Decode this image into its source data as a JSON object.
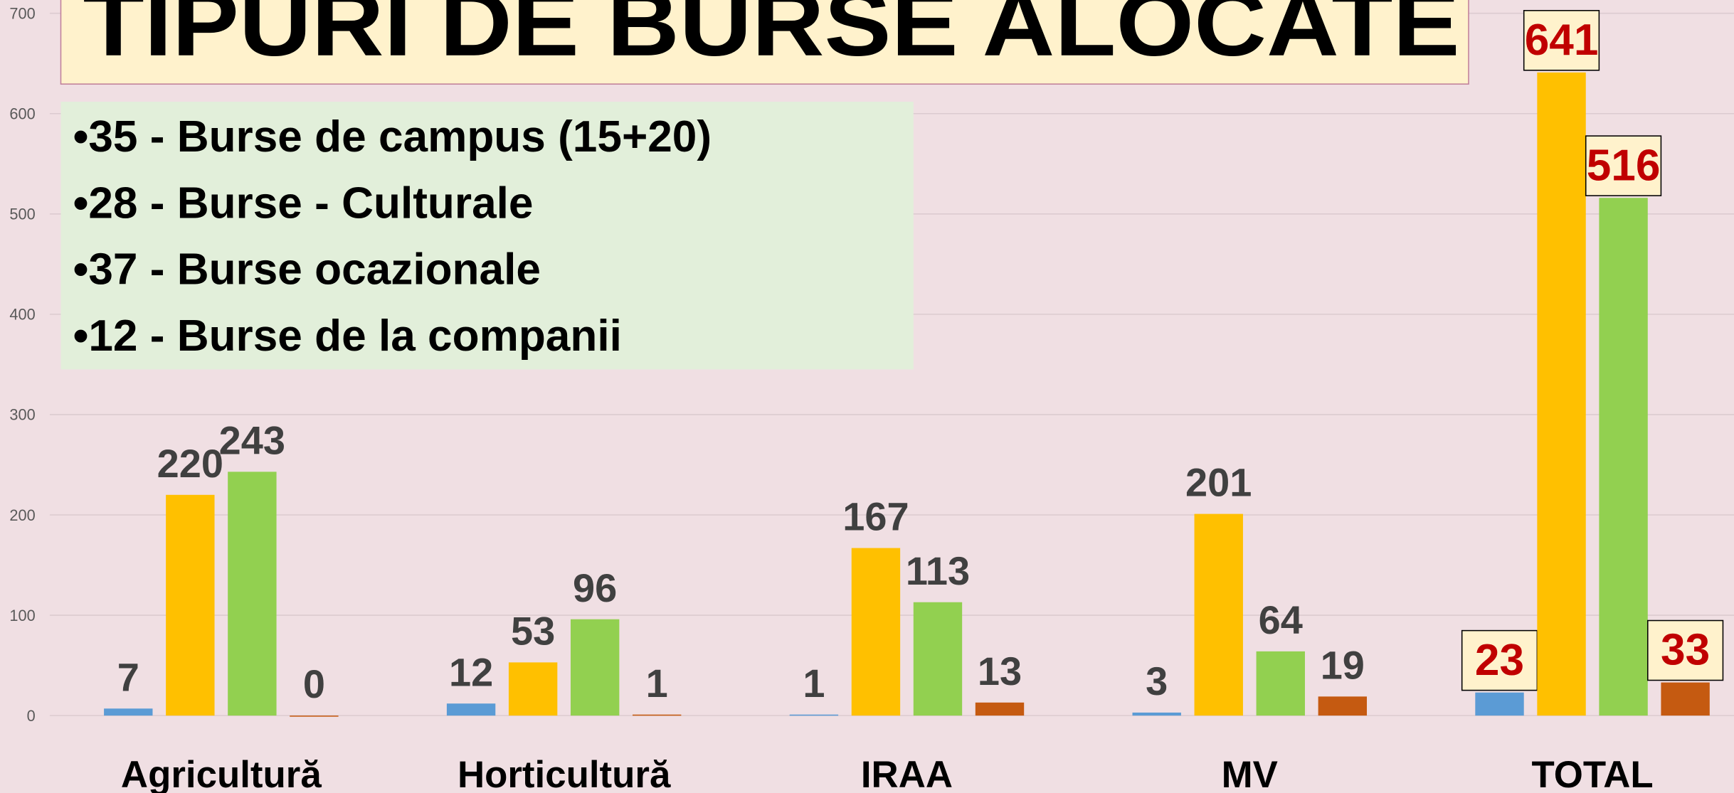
{
  "chart_data": {
    "type": "bar",
    "title": "TIPURI DE BURSE ALOCATE",
    "annotations": [
      "•35 - Burse de campus  (15+20)",
      "•28 - Burse  - Culturale",
      "•37 - Burse ocazionale",
      "•12 - Burse de la companii"
    ],
    "categories": [
      "Agricultură",
      "Horticultură",
      "IRAA",
      "MV",
      "TOTAL"
    ],
    "series": [
      {
        "color": "#5b9bd5",
        "values": [
          7,
          12,
          1,
          3,
          23
        ]
      },
      {
        "color": "#ffc000",
        "values": [
          220,
          53,
          167,
          201,
          641
        ]
      },
      {
        "color": "#92d050",
        "values": [
          243,
          96,
          113,
          64,
          516
        ]
      },
      {
        "color": "#c55a11",
        "values": [
          0,
          1,
          13,
          19,
          33
        ]
      }
    ],
    "ylim": [
      0,
      700
    ],
    "yticks": [
      0,
      100,
      200,
      300,
      400,
      500,
      600,
      700
    ],
    "grid": true
  }
}
